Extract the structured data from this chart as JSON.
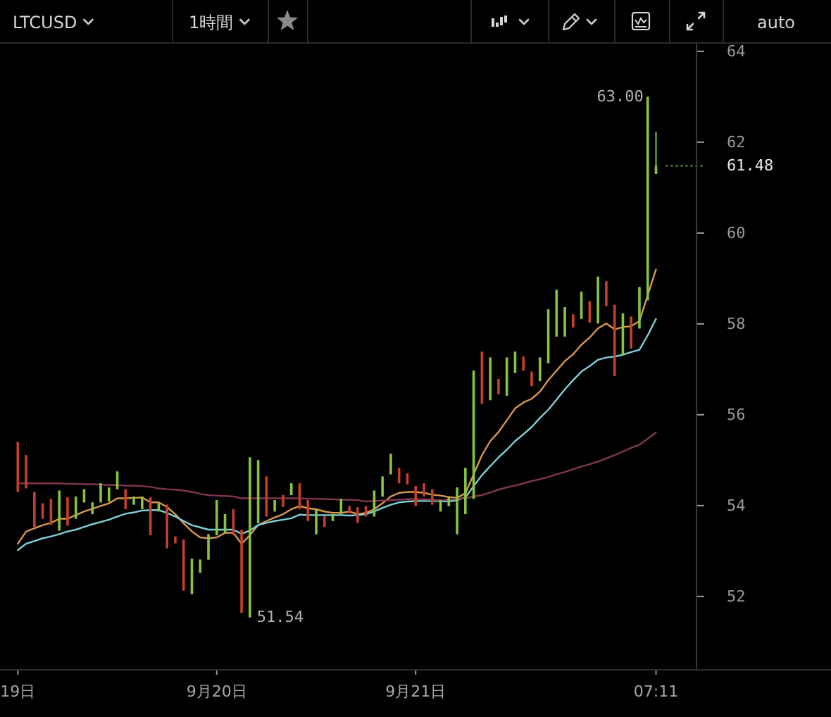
{
  "chart_data": {
    "type": "candlestick",
    "title": "LTCUSD",
    "subtitle": "1時間",
    "annotations": [
      "63.00",
      "51.54",
      "auto"
    ],
    "categories": [
      "19日",
      null,
      null,
      null,
      null,
      null,
      null,
      null,
      null,
      null,
      null,
      null,
      null,
      null,
      null,
      null,
      null,
      null,
      null,
      null,
      null,
      null,
      null,
      null,
      "9月20日",
      null,
      null,
      null,
      null,
      null,
      null,
      null,
      null,
      null,
      null,
      null,
      null,
      null,
      null,
      null,
      null,
      null,
      null,
      null,
      null,
      null,
      null,
      null,
      "9月21日",
      null,
      null,
      null,
      null,
      null,
      null,
      null,
      null,
      null,
      null,
      null,
      null,
      null,
      null,
      null,
      null,
      null,
      null,
      null,
      null,
      null,
      null,
      null,
      null,
      null,
      null,
      null,
      null,
      "07:11"
    ],
    "ohlc": [
      [
        55.4,
        55.4,
        54.3,
        54.3
      ],
      [
        55.11,
        55.11,
        54.38,
        54.38
      ],
      [
        54.3,
        54.3,
        53.53,
        53.53
      ],
      [
        54.05,
        54.05,
        53.71,
        53.71
      ],
      [
        54.15,
        54.15,
        53.58,
        53.58
      ],
      [
        53.45,
        54.33,
        53.45,
        54.33
      ],
      [
        54.18,
        54.18,
        53.56,
        53.56
      ],
      [
        53.71,
        54.2,
        53.71,
        54.2
      ],
      [
        54.07,
        54.36,
        54.07,
        54.36
      ],
      [
        53.81,
        54.07,
        53.81,
        54.07
      ],
      [
        54.07,
        54.49,
        54.07,
        54.49
      ],
      [
        54.09,
        54.4,
        54.09,
        54.4
      ],
      [
        54.36,
        54.75,
        54.36,
        54.75
      ],
      [
        54.36,
        54.36,
        53.92,
        53.92
      ],
      [
        54.02,
        54.2,
        54.02,
        54.2
      ],
      [
        53.92,
        54.2,
        53.92,
        54.2
      ],
      [
        54.18,
        54.18,
        53.35,
        53.35
      ],
      [
        53.87,
        54.05,
        53.87,
        54.05
      ],
      [
        54.02,
        54.02,
        53.06,
        53.06
      ],
      [
        53.32,
        53.32,
        53.17,
        53.17
      ],
      [
        53.25,
        53.25,
        52.13,
        52.13
      ],
      [
        52.05,
        52.83,
        52.05,
        52.83
      ],
      [
        52.52,
        52.81,
        52.52,
        52.81
      ],
      [
        52.81,
        53.37,
        52.81,
        53.37
      ],
      [
        53.35,
        54.12,
        53.35,
        54.12
      ],
      [
        53.4,
        53.81,
        53.4,
        53.81
      ],
      [
        53.92,
        53.92,
        53.35,
        53.35
      ],
      [
        53.47,
        53.47,
        51.64,
        51.64
      ],
      [
        51.54,
        55.06,
        51.54,
        55.06
      ],
      [
        53.61,
        55.0,
        53.61,
        55.0
      ],
      [
        54.64,
        54.64,
        53.76,
        53.76
      ],
      [
        53.87,
        54.12,
        53.87,
        54.12
      ],
      [
        54.23,
        54.23,
        53.97,
        53.97
      ],
      [
        54.23,
        54.49,
        54.23,
        54.49
      ],
      [
        54.49,
        54.49,
        53.92,
        53.92
      ],
      [
        54.12,
        54.12,
        53.66,
        53.66
      ],
      [
        53.37,
        53.92,
        53.37,
        53.92
      ],
      [
        53.76,
        53.76,
        53.53,
        53.53
      ],
      [
        53.66,
        53.81,
        53.66,
        53.81
      ],
      [
        53.81,
        54.15,
        53.81,
        54.15
      ],
      [
        53.99,
        53.99,
        53.83,
        53.83
      ],
      [
        53.96,
        53.96,
        53.62,
        53.62
      ],
      [
        53.99,
        53.99,
        53.76,
        53.76
      ],
      [
        53.76,
        54.33,
        53.76,
        54.33
      ],
      [
        54.2,
        54.64,
        54.2,
        54.64
      ],
      [
        54.69,
        55.14,
        54.69,
        55.14
      ],
      [
        54.83,
        54.83,
        54.49,
        54.49
      ],
      [
        54.71,
        54.71,
        54.47,
        54.47
      ],
      [
        54.43,
        54.43,
        53.99,
        53.99
      ],
      [
        54.49,
        54.49,
        54.2,
        54.2
      ],
      [
        54.36,
        54.36,
        54.02,
        54.02
      ],
      [
        53.87,
        54.12,
        53.87,
        54.12
      ],
      [
        53.99,
        54.18,
        53.99,
        54.18
      ],
      [
        53.37,
        54.4,
        53.37,
        54.4
      ],
      [
        53.81,
        54.83,
        53.81,
        54.83
      ],
      [
        54.15,
        56.97,
        54.15,
        56.97
      ],
      [
        57.39,
        57.39,
        56.24,
        56.24
      ],
      [
        56.32,
        57.26,
        56.32,
        57.26
      ],
      [
        56.79,
        56.79,
        56.45,
        56.45
      ],
      [
        56.42,
        57.26,
        56.42,
        57.26
      ],
      [
        56.92,
        57.39,
        56.92,
        57.39
      ],
      [
        57.28,
        57.28,
        56.97,
        56.97
      ],
      [
        56.95,
        56.95,
        56.63,
        56.63
      ],
      [
        56.74,
        57.26,
        56.74,
        57.26
      ],
      [
        57.13,
        58.32,
        57.13,
        58.32
      ],
      [
        57.72,
        58.75,
        57.72,
        58.75
      ],
      [
        57.72,
        58.37,
        57.72,
        58.37
      ],
      [
        58.21,
        58.21,
        57.92,
        57.92
      ],
      [
        58.11,
        58.71,
        58.11,
        58.71
      ],
      [
        58.5,
        58.5,
        58.03,
        58.03
      ],
      [
        58.01,
        59.04,
        58.01,
        59.04
      ],
      [
        58.94,
        58.94,
        58.39,
        58.39
      ],
      [
        58.42,
        58.42,
        56.85,
        56.85
      ],
      [
        57.3,
        58.23,
        57.3,
        58.23
      ],
      [
        58.16,
        58.16,
        57.46,
        57.46
      ],
      [
        57.9,
        58.81,
        57.9,
        58.81
      ],
      [
        58.52,
        63.0,
        58.52,
        63.0
      ],
      [
        61.3,
        62.23,
        61.3,
        61.48
      ]
    ],
    "colors": [
      "#c2412c",
      "#c2412c",
      "#c2412c",
      "#c2412c",
      "#c2412c",
      "#86c440",
      "#c2412c",
      "#86c440",
      "#86c440",
      "#86c440",
      "#86c440",
      "#86c440",
      "#86c440",
      "#c2412c",
      "#86c440",
      "#86c440",
      "#c2412c",
      "#86c440",
      "#c2412c",
      "#c2412c",
      "#c2412c",
      "#86c440",
      "#86c440",
      "#86c440",
      "#86c440",
      "#86c440",
      "#c2412c",
      "#c2412c",
      "#86c440",
      "#86c440",
      "#c2412c",
      "#86c440",
      "#c2412c",
      "#86c440",
      "#c2412c",
      "#c2412c",
      "#86c440",
      "#c2412c",
      "#86c440",
      "#86c440",
      "#c2412c",
      "#c2412c",
      "#c2412c",
      "#86c440",
      "#86c440",
      "#86c440",
      "#c2412c",
      "#c2412c",
      "#c2412c",
      "#c2412c",
      "#c2412c",
      "#86c440",
      "#86c440",
      "#86c440",
      "#86c440",
      "#86c440",
      "#c2412c",
      "#86c440",
      "#c2412c",
      "#86c440",
      "#86c440",
      "#c2412c",
      "#c2412c",
      "#86c440",
      "#86c440",
      "#86c440",
      "#86c440",
      "#c2412c",
      "#86c440",
      "#c2412c",
      "#86c440",
      "#c2412c",
      "#c2412c",
      "#86c440",
      "#c2412c",
      "#86c440",
      "#86c440",
      "#86c440"
    ],
    "series": [
      {
        "type": "line",
        "color": "#d9974f",
        "values": [
          53.16,
          53.43,
          53.5,
          53.57,
          53.62,
          53.71,
          53.71,
          53.79,
          53.87,
          53.93,
          53.99,
          54.05,
          54.16,
          54.16,
          54.17,
          54.18,
          54.07,
          54.07,
          53.97,
          53.81,
          53.61,
          53.43,
          53.3,
          53.28,
          53.3,
          53.4,
          53.4,
          53.16,
          53.35,
          53.57,
          53.66,
          53.74,
          53.81,
          53.92,
          53.99,
          53.94,
          53.92,
          53.87,
          53.84,
          53.84,
          53.87,
          53.81,
          53.84,
          53.92,
          54.05,
          54.2,
          54.28,
          54.3,
          54.3,
          54.28,
          54.24,
          54.22,
          54.19,
          54.17,
          54.27,
          54.69,
          55.11,
          55.42,
          55.62,
          55.88,
          56.14,
          56.27,
          56.35,
          56.51,
          56.76,
          56.97,
          57.18,
          57.33,
          57.54,
          57.7,
          57.9,
          58.01,
          57.88,
          57.93,
          57.95,
          58.06,
          58.63,
          59.2
        ]
      },
      {
        "type": "line",
        "color": "#7fd0d8",
        "values": [
          53.02,
          53.16,
          53.22,
          53.28,
          53.32,
          53.37,
          53.43,
          53.47,
          53.53,
          53.59,
          53.64,
          53.69,
          53.76,
          53.82,
          53.85,
          53.89,
          53.9,
          53.9,
          53.84,
          53.76,
          53.66,
          53.57,
          53.52,
          53.47,
          53.47,
          53.47,
          53.47,
          53.38,
          53.45,
          53.57,
          53.62,
          53.66,
          53.69,
          53.72,
          53.8,
          53.79,
          53.79,
          53.79,
          53.79,
          53.79,
          53.78,
          53.79,
          53.81,
          53.87,
          53.95,
          54.02,
          54.07,
          54.09,
          54.1,
          54.1,
          54.1,
          54.1,
          54.09,
          54.12,
          54.18,
          54.43,
          54.67,
          54.87,
          55.06,
          55.23,
          55.42,
          55.57,
          55.73,
          55.93,
          56.11,
          56.33,
          56.56,
          56.76,
          56.95,
          57.07,
          57.21,
          57.26,
          57.28,
          57.32,
          57.38,
          57.43,
          57.75,
          58.11
        ]
      },
      {
        "type": "line",
        "color": "#80364f",
        "values": [
          54.49,
          54.49,
          54.49,
          54.49,
          54.49,
          54.49,
          54.48,
          54.48,
          54.47,
          54.47,
          54.46,
          54.45,
          54.45,
          54.44,
          54.44,
          54.43,
          54.41,
          54.38,
          54.36,
          54.35,
          54.33,
          54.3,
          54.26,
          54.23,
          54.22,
          54.21,
          54.2,
          54.16,
          54.16,
          54.16,
          54.16,
          54.16,
          54.16,
          54.16,
          54.16,
          54.15,
          54.15,
          54.14,
          54.14,
          54.13,
          54.13,
          54.12,
          54.09,
          54.1,
          54.11,
          54.12,
          54.13,
          54.14,
          54.15,
          54.14,
          54.13,
          54.12,
          54.13,
          54.15,
          54.16,
          54.2,
          54.23,
          54.29,
          54.35,
          54.4,
          54.44,
          54.49,
          54.54,
          54.58,
          54.63,
          54.69,
          54.74,
          54.8,
          54.86,
          54.91,
          54.97,
          55.04,
          55.11,
          55.19,
          55.27,
          55.34,
          55.47,
          55.61
        ]
      }
    ],
    "ylim": [
      50.4,
      64.2
    ],
    "yticks": [
      52,
      54,
      56,
      58,
      60,
      62,
      64
    ],
    "ref_lines": [
      {
        "axis": "y",
        "value": 61.48,
        "label": "61.48",
        "color": "#5fae3a",
        "line_style": "dotted"
      }
    ]
  }
}
